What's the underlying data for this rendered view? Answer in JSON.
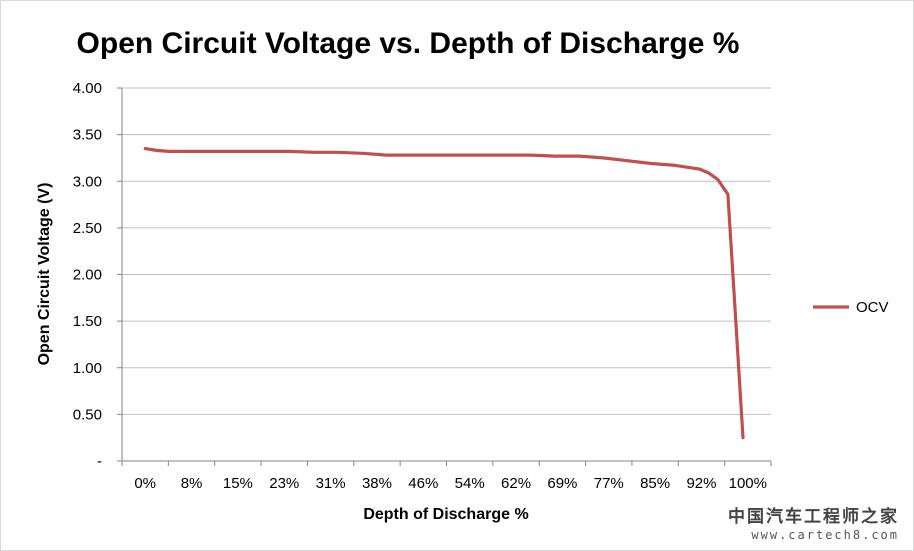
{
  "chart_data": {
    "type": "line",
    "title": "Open Circuit Voltage vs. Depth of Discharge %",
    "xlabel": "Depth of Discharge %",
    "ylabel": "Open Circuit Voltage (V)",
    "x_tick_labels": [
      "0%",
      "8%",
      "15%",
      "23%",
      "31%",
      "38%",
      "46%",
      "54%",
      "62%",
      "69%",
      "77%",
      "85%",
      "92%",
      "100%"
    ],
    "y_tick_labels": [
      "-",
      "0.50",
      "1.00",
      "1.50",
      "2.00",
      "2.50",
      "3.00",
      "3.50",
      "4.00"
    ],
    "ylim": [
      0,
      4
    ],
    "xlim": [
      0,
      100
    ],
    "grid": true,
    "legend_position": "right",
    "series": [
      {
        "name": "OCV",
        "color": "#c0504d",
        "x": [
          0,
          2,
          4,
          6,
          8,
          12,
          16,
          20,
          24,
          28,
          32,
          36,
          40,
          44,
          48,
          52,
          56,
          60,
          64,
          68,
          72,
          76,
          80,
          84,
          88,
          90,
          92,
          93.5,
          95,
          96.7,
          98,
          99.2
        ],
        "y": [
          3.35,
          3.33,
          3.32,
          3.32,
          3.32,
          3.32,
          3.32,
          3.32,
          3.32,
          3.31,
          3.31,
          3.3,
          3.28,
          3.28,
          3.28,
          3.28,
          3.28,
          3.28,
          3.28,
          3.27,
          3.27,
          3.25,
          3.22,
          3.19,
          3.17,
          3.15,
          3.13,
          3.09,
          3.02,
          2.86,
          1.5,
          0.25
        ]
      }
    ]
  },
  "watermark": {
    "site_name": "中国汽车工程师之家",
    "url": "www.cartech8.com"
  }
}
